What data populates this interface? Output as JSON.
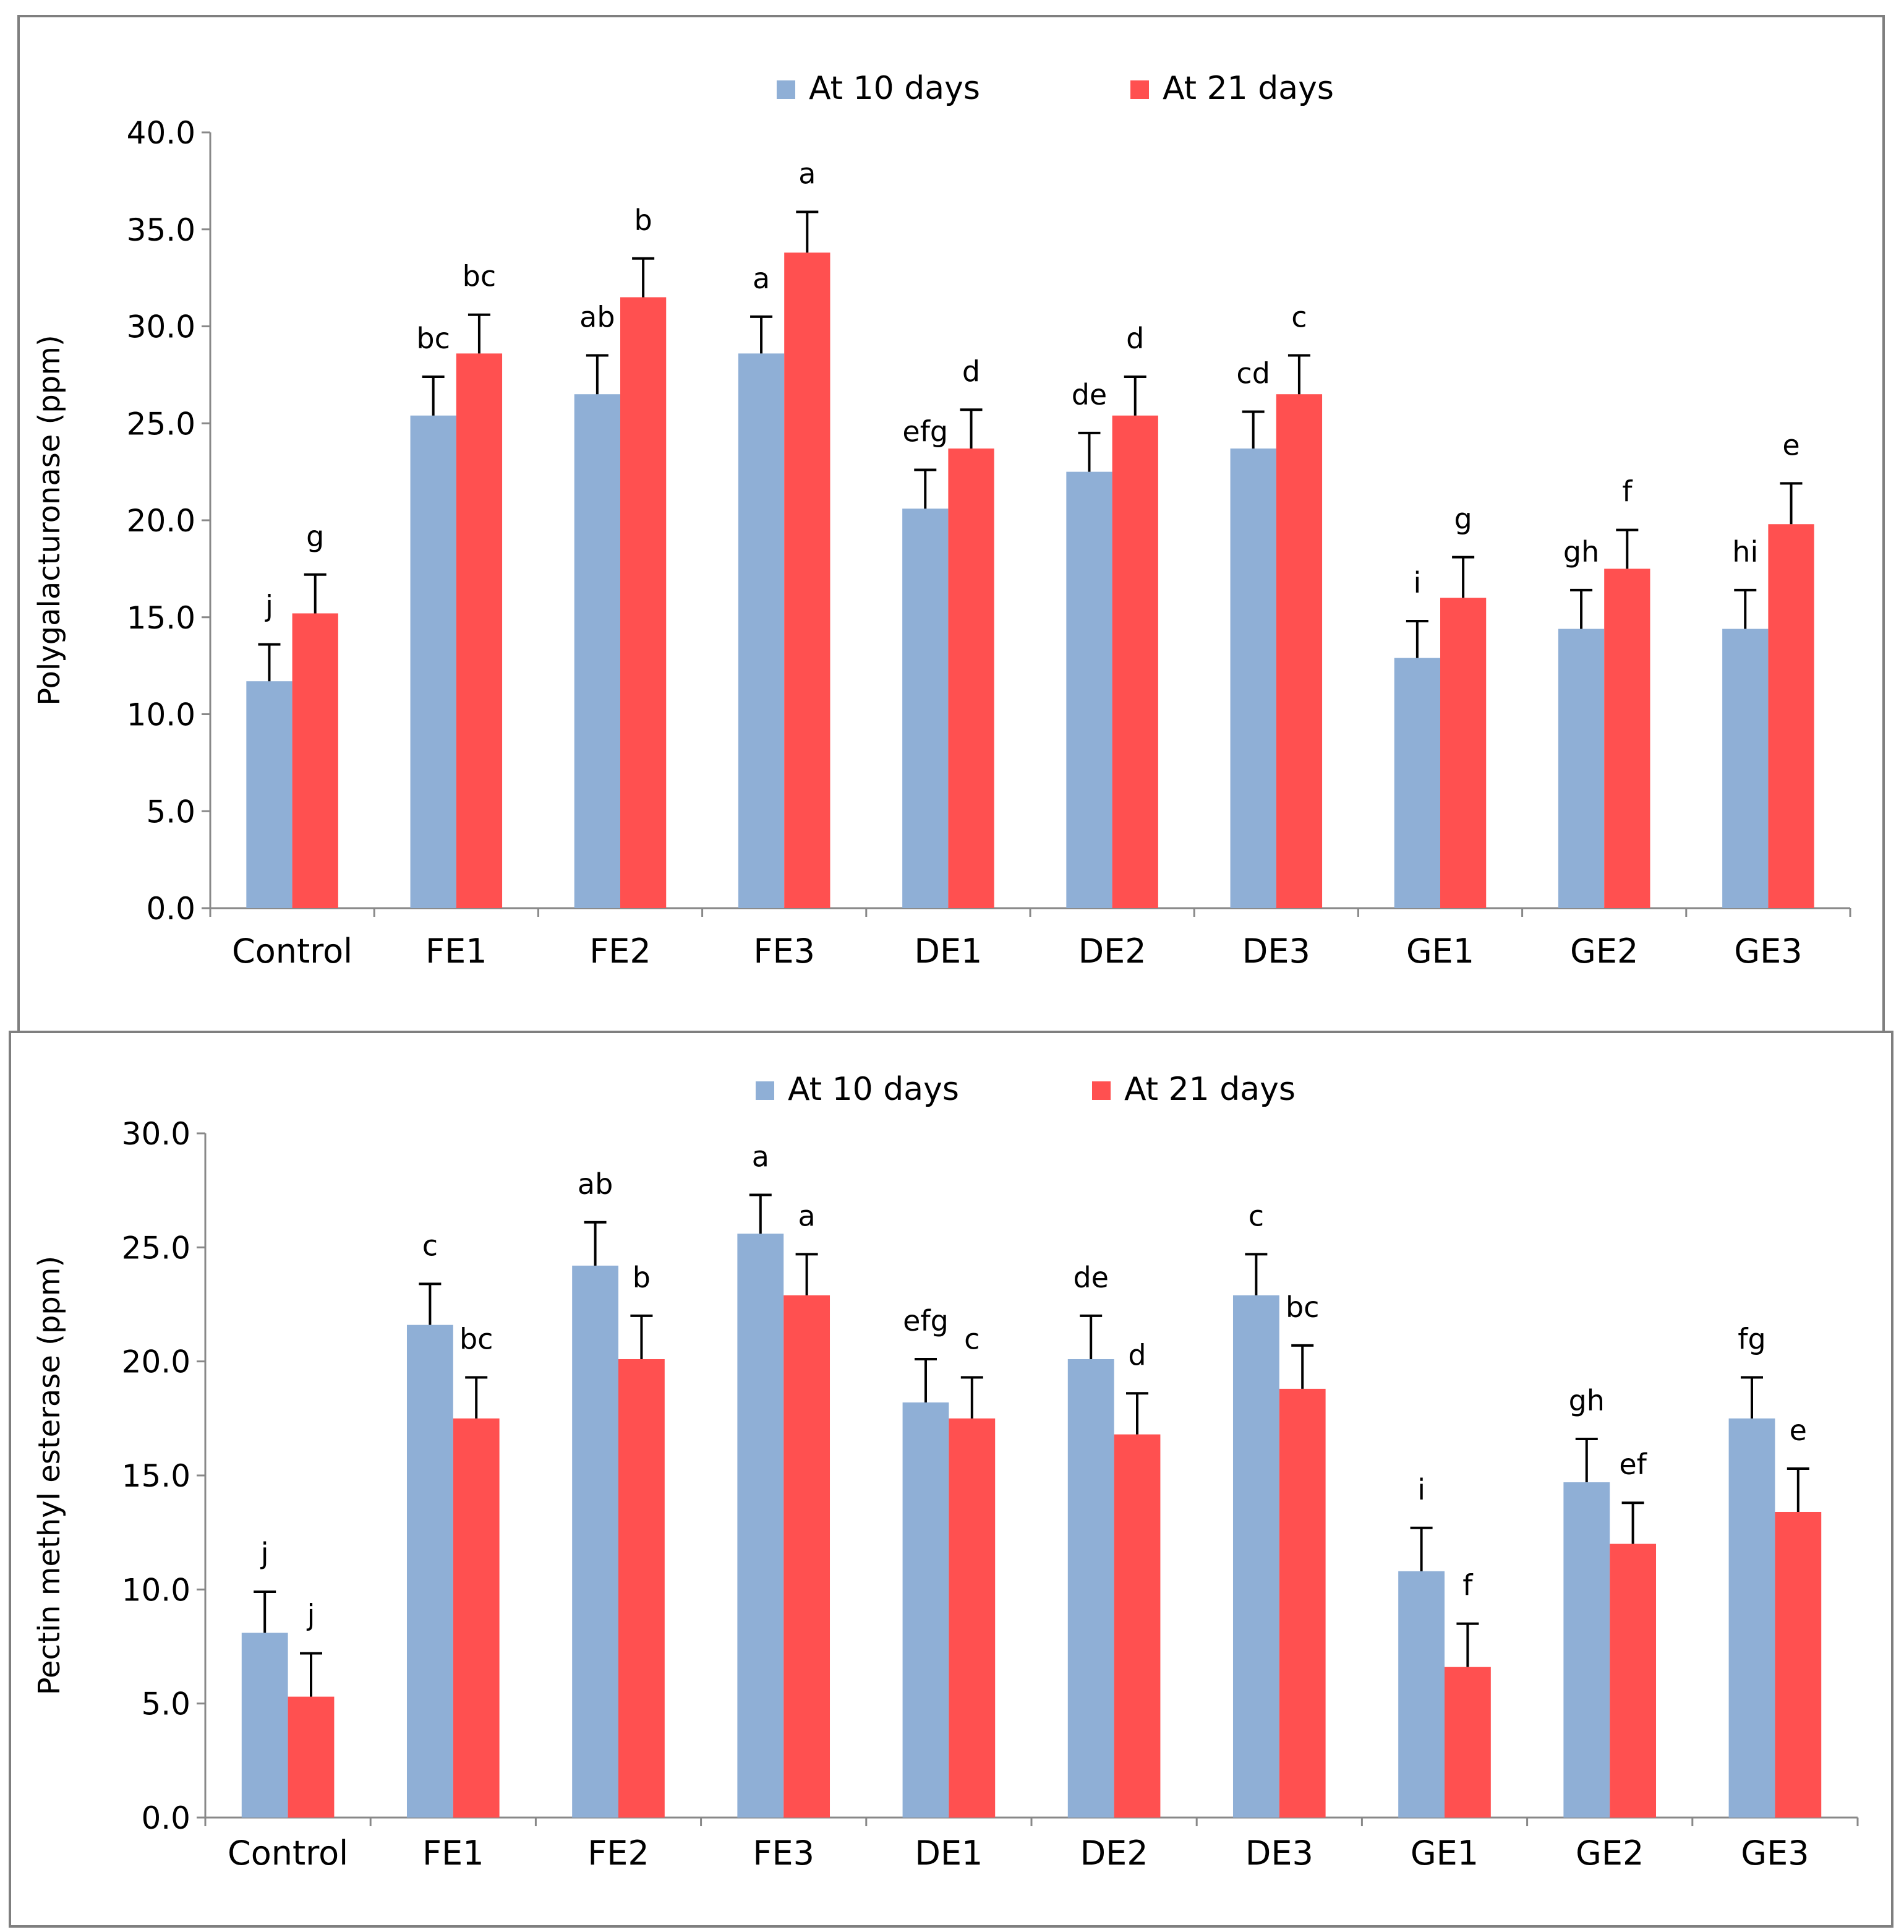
{
  "colors": {
    "series_10": "#8FAFD6",
    "series_21": "#FF5050",
    "axis": "#888888",
    "frame": "#7F7F7F"
  },
  "chart_data": [
    {
      "type": "bar",
      "title": "",
      "xlabel": "",
      "ylabel": "Polygalacturonase (ppm)",
      "ylim": [
        0,
        40
      ],
      "yticks": [
        "0.0",
        "5.0",
        "10.0",
        "15.0",
        "20.0",
        "25.0",
        "30.0",
        "35.0",
        "40.0"
      ],
      "categories": [
        "Control",
        "FE1",
        "FE2",
        "FE3",
        "DE1",
        "DE2",
        "DE3",
        "GE1",
        "GE2",
        "GE3"
      ],
      "legend": "top-center",
      "series": [
        {
          "name": "At 10 days",
          "values": [
            11.7,
            25.4,
            26.5,
            28.6,
            20.6,
            22.5,
            23.7,
            12.9,
            14.4,
            14.4
          ],
          "errors": [
            1.9,
            2.0,
            2.0,
            1.9,
            2.0,
            2.0,
            1.9,
            1.9,
            2.0,
            2.0
          ],
          "labels": [
            "j",
            "bc",
            "ab",
            "a",
            "efg",
            "de",
            "cd",
            "i",
            "gh",
            "hi"
          ]
        },
        {
          "name": "At 21 days",
          "values": [
            15.2,
            28.6,
            31.5,
            33.8,
            23.7,
            25.4,
            26.5,
            16.0,
            17.5,
            19.8
          ],
          "errors": [
            2.0,
            2.0,
            2.0,
            2.1,
            2.0,
            2.0,
            2.0,
            2.1,
            2.0,
            2.1
          ],
          "labels": [
            "g",
            "bc",
            "b",
            "a",
            "d",
            "d",
            "c",
            "g",
            "f",
            "e"
          ]
        }
      ]
    },
    {
      "type": "bar",
      "title": "",
      "xlabel": "",
      "ylabel": "Pectin methyl esterase (ppm)",
      "ylim": [
        0,
        30
      ],
      "yticks": [
        "0.0",
        "5.0",
        "10.0",
        "15.0",
        "20.0",
        "25.0",
        "30.0"
      ],
      "categories": [
        "Control",
        "FE1",
        "FE2",
        "FE3",
        "DE1",
        "DE2",
        "DE3",
        "GE1",
        "GE2",
        "GE3"
      ],
      "legend": "top-center",
      "series": [
        {
          "name": "At 10 days",
          "values": [
            8.1,
            21.6,
            24.2,
            25.6,
            18.2,
            20.1,
            22.9,
            10.8,
            14.7,
            17.5
          ],
          "errors": [
            1.8,
            1.8,
            1.9,
            1.7,
            1.9,
            1.9,
            1.8,
            1.9,
            1.9,
            1.8
          ],
          "labels": [
            "j",
            "c",
            "ab",
            "a",
            "efg",
            "de",
            "c",
            "i",
            "gh",
            "fg"
          ]
        },
        {
          "name": "At 21 days",
          "values": [
            5.3,
            17.5,
            20.1,
            22.9,
            17.5,
            16.8,
            18.8,
            6.6,
            12.0,
            13.4
          ],
          "errors": [
            1.9,
            1.8,
            1.9,
            1.8,
            1.8,
            1.8,
            1.9,
            1.9,
            1.8,
            1.9
          ],
          "labels": [
            "j",
            "bc",
            "b",
            "a",
            "c",
            "d",
            "bc",
            "f",
            "ef",
            "e"
          ]
        }
      ]
    }
  ]
}
